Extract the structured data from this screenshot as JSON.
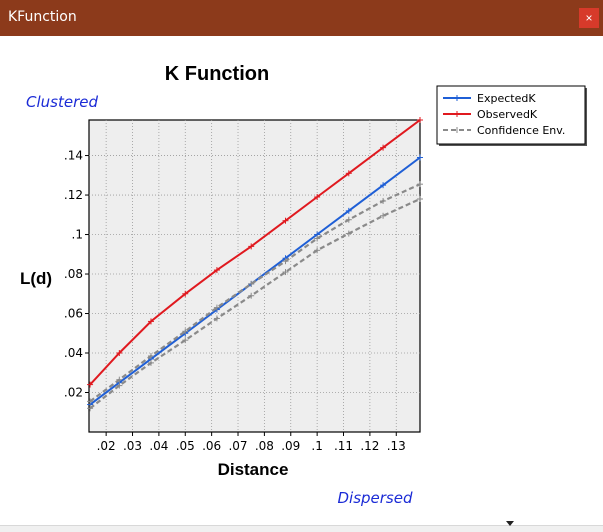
{
  "window": {
    "title": "KFunction",
    "close_label": "×"
  },
  "colors": {
    "titlebar": "#8c3a1b",
    "expected": "#1f5fd6",
    "observed": "#e0191f",
    "confidence": "#8a8a8a",
    "annotation": "#1b2bd6"
  },
  "chart_data": {
    "type": "line",
    "title": "K Function",
    "xlabel": "Distance",
    "ylabel": "L(d)",
    "annotations": {
      "top": "Clustered",
      "bottom": "Dispersed"
    },
    "xlim": [
      0.0135,
      0.139
    ],
    "ylim": [
      0.0,
      0.158
    ],
    "grid": true,
    "legend_position": "top-right",
    "x_ticks": [
      ".02",
      ".03",
      ".04",
      ".05",
      ".06",
      ".07",
      ".08",
      ".09",
      ".1",
      ".11",
      ".12",
      ".13"
    ],
    "y_ticks": [
      ".02",
      ".04",
      ".06",
      ".08",
      ".1",
      ".12",
      ".14"
    ],
    "x": [
      0.0139,
      0.025,
      0.037,
      0.05,
      0.062,
      0.075,
      0.088,
      0.1,
      0.112,
      0.125,
      0.139
    ],
    "series": [
      {
        "name": "ExpectedK",
        "style": "solid",
        "values": [
          0.0139,
          0.025,
          0.037,
          0.05,
          0.062,
          0.075,
          0.088,
          0.1,
          0.112,
          0.125,
          0.139
        ]
      },
      {
        "name": "ObservedK",
        "style": "solid",
        "values": [
          0.024,
          0.04,
          0.056,
          0.07,
          0.082,
          0.094,
          0.107,
          0.119,
          0.131,
          0.144,
          0.158
        ]
      },
      {
        "name": "Confidence Env.",
        "style": "dashed",
        "values": [
          0.0155,
          0.0265,
          0.0385,
          0.051,
          0.063,
          0.075,
          0.0865,
          0.098,
          0.1075,
          0.117,
          0.1255
        ]
      },
      {
        "name": "",
        "style": "dashed",
        "values": [
          0.012,
          0.0235,
          0.035,
          0.0465,
          0.0575,
          0.069,
          0.081,
          0.092,
          0.1005,
          0.1095,
          0.118
        ]
      }
    ]
  }
}
